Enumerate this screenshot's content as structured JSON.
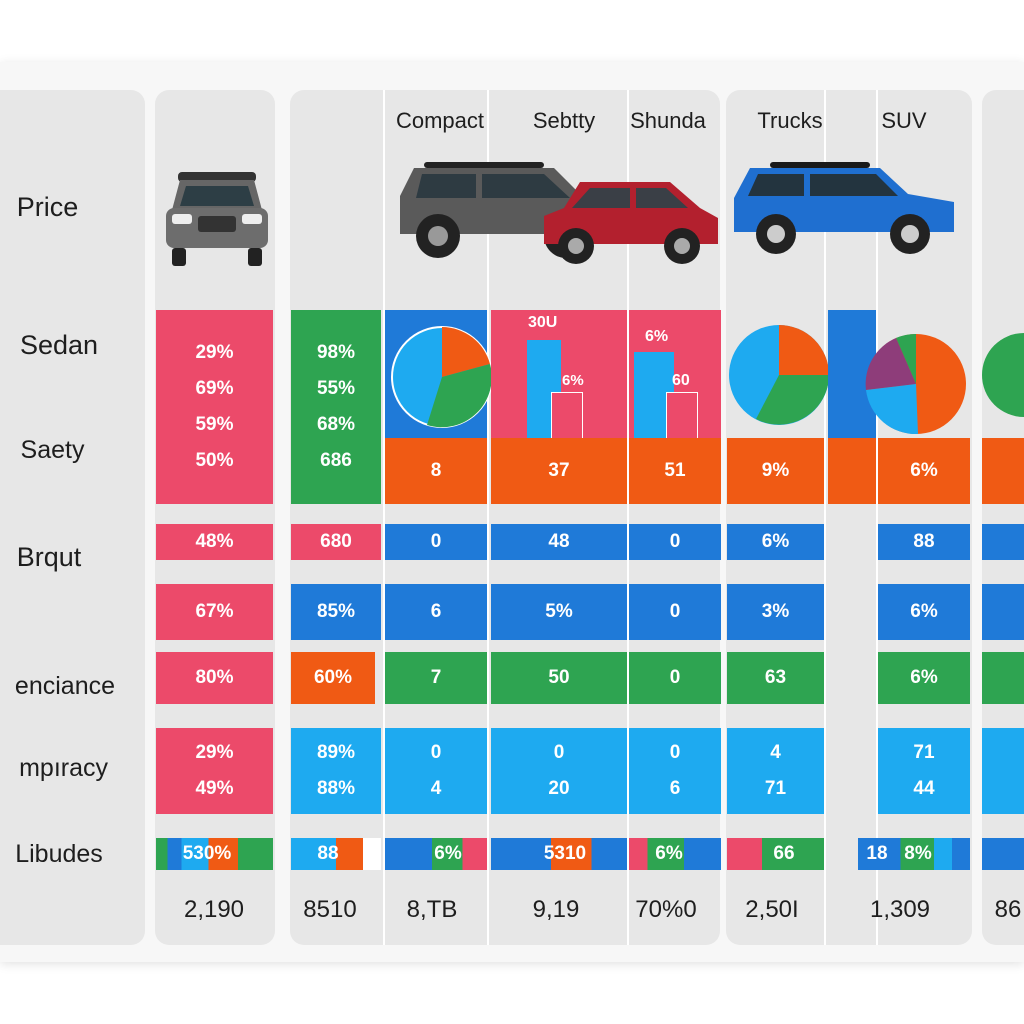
{
  "colors": {
    "red": "#ec4a6a",
    "green": "#2ea451",
    "blue": "#1f7ad8",
    "lightblue": "#1eaaf0",
    "orange": "#f05a14",
    "purple": "#8e3d7a"
  },
  "header": {
    "labels": [
      "Compact",
      "Sebtty",
      "Shunda",
      "Trucks",
      "SUV"
    ]
  },
  "row_labels": [
    "Price",
    "Sedan",
    "Saety",
    "Brqut",
    "enciance",
    "mpıracy",
    "Libudes"
  ],
  "chart_data": {
    "type": "table",
    "rows": {
      "sedan_top": [
        [
          "29%",
          "69%",
          "59%",
          "50%"
        ],
        [
          "98%",
          "55%",
          "68%",
          "686"
        ]
      ],
      "sedan_bottom": [
        "8",
        "37",
        "51",
        "9%",
        "",
        "6%",
        ""
      ],
      "bar_labels": [
        "30U",
        "6%",
        "6%",
        "60"
      ],
      "brqut": [
        "48%",
        "680",
        "0",
        "48",
        "0",
        "6%",
        "88",
        ""
      ],
      "row5": [
        "67%",
        "85%",
        "6",
        "5%",
        "0",
        "3%",
        "6%",
        ""
      ],
      "enciance": [
        "80%",
        "60%",
        "7",
        "50",
        "0",
        "63",
        "6%",
        ""
      ],
      "mpiracy": [
        [
          "29%",
          "49%"
        ],
        [
          "89%",
          "88%"
        ],
        [
          "0",
          "4"
        ],
        [
          "0",
          "20"
        ],
        [
          "0",
          "6"
        ],
        [
          "4",
          "71"
        ],
        [
          "71",
          "44"
        ],
        [
          "",
          ""
        ]
      ],
      "libudes": [
        "530%",
        "88",
        "6%",
        "5310",
        "6%",
        "66",
        "18",
        "8%"
      ]
    },
    "totals": [
      "2,190",
      "8510",
      "8,TB",
      "9,19",
      "70%0",
      "2,50I",
      "1,309",
      "86"
    ]
  }
}
